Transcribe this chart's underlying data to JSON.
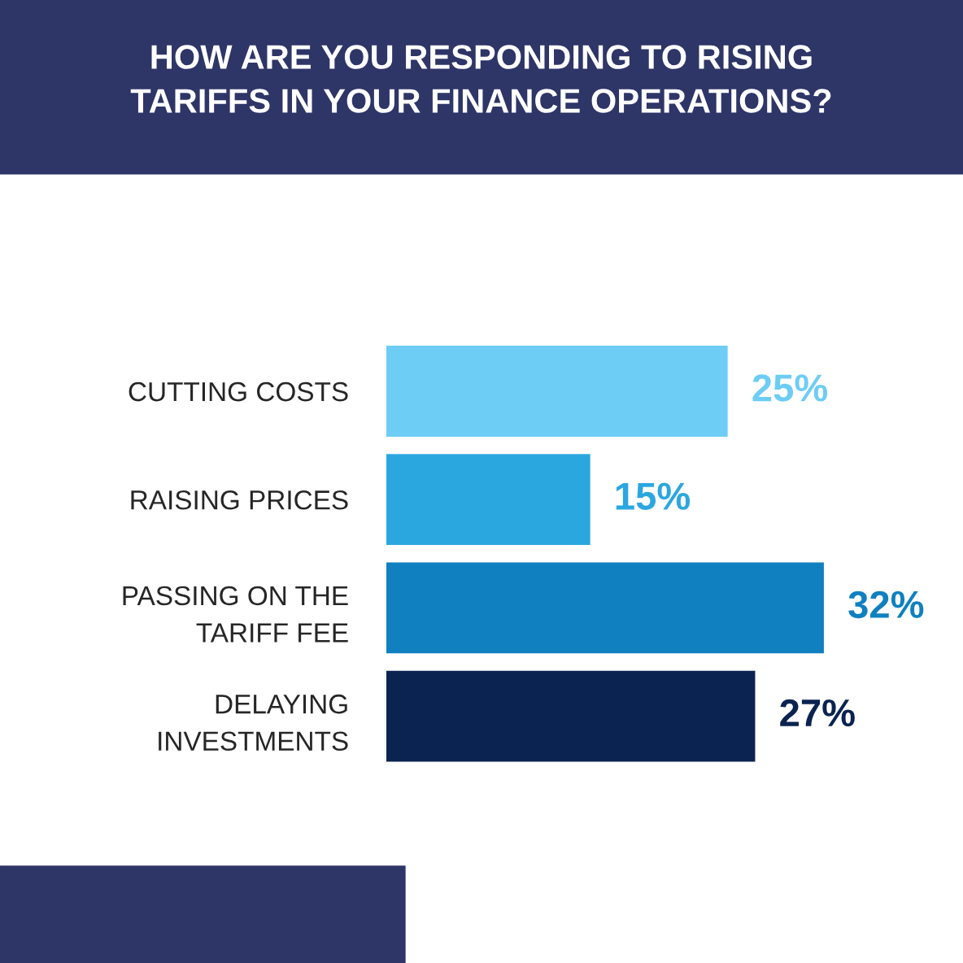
{
  "chart_data": {
    "type": "bar",
    "orientation": "horizontal",
    "title": "HOW ARE YOU RESPONDING TO RISING\nTARIFFS IN YOUR FINANCE OPERATIONS?",
    "categories": [
      "CUTTING COSTS",
      "RAISING PRICES",
      "PASSING ON THE\nTARIFF FEE",
      "DELAYING\nINVESTMENTS"
    ],
    "values": [
      25,
      15,
      32,
      27
    ],
    "colors": [
      "#6dcdf5",
      "#2ba7e0",
      "#1080c0",
      "#0b2350"
    ],
    "value_labels": [
      "25%",
      "15%",
      "32%",
      "27%"
    ]
  }
}
